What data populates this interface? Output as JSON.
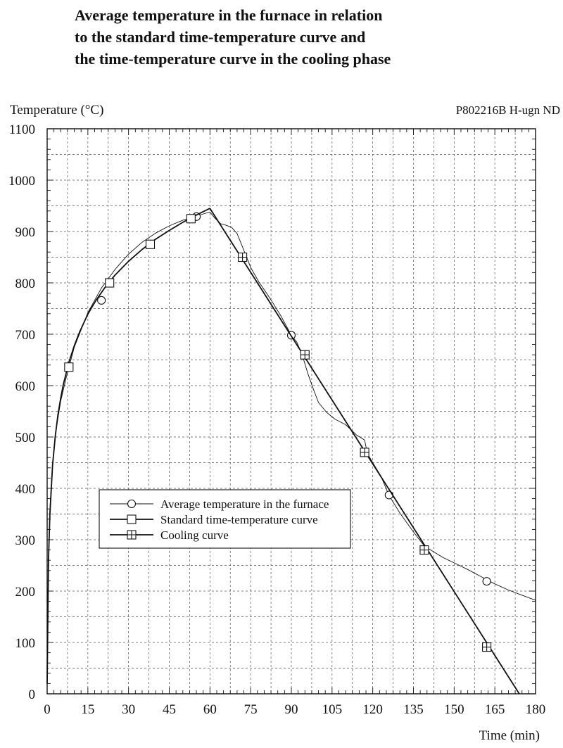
{
  "title_lines": [
    "Average temperature in the furnace in relation",
    "to the standard time-temperature curve and",
    "the time-temperature curve in the cooling phase"
  ],
  "chart_data": {
    "type": "line",
    "title": "Average temperature in the furnace in relation to the standard time-temperature curve and the time-temperature curve in the cooling phase",
    "ylabel": "Temperature (°C)",
    "xlabel": "Time (min)",
    "id_label": "P802216B H-ugn ND",
    "xlim": [
      0,
      180
    ],
    "ylim": [
      0,
      1100
    ],
    "xticks": [
      0,
      15,
      30,
      45,
      60,
      75,
      90,
      105,
      120,
      135,
      150,
      165,
      180
    ],
    "yticks": [
      0,
      100,
      200,
      300,
      400,
      500,
      600,
      700,
      800,
      900,
      1000,
      1100
    ],
    "grid": true,
    "legend_position": "center-left",
    "series": [
      {
        "name": "Average temperature in the furnace",
        "marker": "circle",
        "stroke_width": 0.9,
        "x": [
          0,
          0.5,
          1,
          2,
          3,
          5,
          7,
          10,
          15,
          20,
          25,
          30,
          35,
          40,
          45,
          50,
          55,
          58,
          60,
          62,
          64,
          66,
          68,
          70,
          72,
          75,
          78,
          82,
          86,
          90,
          92,
          94,
          96,
          98,
          100,
          103,
          106,
          110,
          114,
          117,
          118,
          120,
          123,
          126,
          130,
          135,
          139,
          142,
          146,
          150,
          155,
          160,
          165,
          170,
          175,
          180
        ],
        "y": [
          20,
          250,
          360,
          450,
          505,
          570,
          615,
          675,
          742,
          790,
          826,
          856,
          879,
          897,
          911,
          922,
          930,
          935,
          938,
          925,
          915,
          912,
          908,
          896,
          870,
          830,
          802,
          771,
          737,
          698,
          685,
          660,
          625,
          595,
          567,
          548,
          535,
          524,
          504,
          494,
          468,
          450,
          424,
          386,
          352,
          315,
          288,
          278,
          265,
          255,
          242,
          228,
          214,
          202,
          192,
          182
        ],
        "markers": [
          [
            20,
            766
          ],
          [
            55,
            929
          ],
          [
            90,
            698
          ],
          [
            126,
            387
          ],
          [
            162,
            219
          ]
        ]
      },
      {
        "name": "Standard time-temperature curve",
        "marker": "square",
        "stroke_width": 1.8,
        "x": [
          0,
          0.5,
          1,
          2,
          3,
          4,
          5,
          6,
          8,
          10,
          12,
          15,
          18,
          22,
          25,
          30,
          35,
          40,
          45,
          50,
          55,
          60
        ],
        "y": [
          20,
          261,
          349,
          445,
          502,
          544,
          576,
          603,
          645,
          678,
          705,
          739,
          766,
          796,
          815,
          842,
          865,
          885,
          902,
          918,
          932,
          945
        ],
        "markers": [
          [
            8,
            636
          ],
          [
            23,
            800
          ],
          [
            38,
            875
          ],
          [
            53,
            925
          ]
        ]
      },
      {
        "name": "Cooling curve",
        "marker": "boxed-plus",
        "stroke_width": 1.8,
        "x": [
          60,
          174
        ],
        "y": [
          945,
          0
        ],
        "markers": [
          [
            72,
            850
          ],
          [
            95,
            660
          ],
          [
            117,
            470
          ],
          [
            139,
            280
          ],
          [
            162,
            91
          ]
        ]
      }
    ]
  }
}
